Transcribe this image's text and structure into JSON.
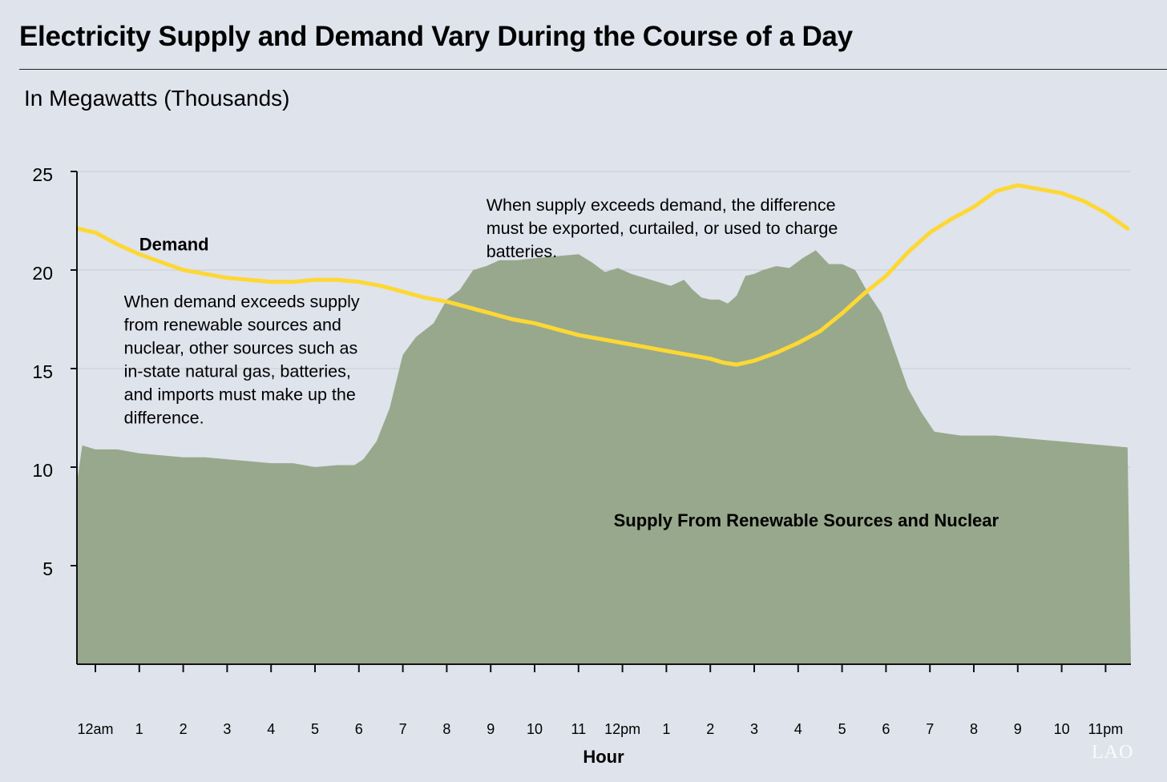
{
  "title": "Electricity Supply and Demand Vary During the Course of a Day",
  "subtitle": "In Megawatts (Thousands)",
  "watermark": "LAO",
  "colors": {
    "background": "#dfe3ec",
    "supply_fill": "#98a88c",
    "demand_line": "#fdd835",
    "axis": "#111111",
    "grid": "#c8ccd6"
  },
  "chart_data": {
    "type": "area",
    "xlabel": "Hour",
    "ylabel": "",
    "ylim": [
      0,
      25
    ],
    "yticks": [
      5,
      10,
      15,
      20,
      25
    ],
    "ytick_labels": [
      "5",
      "10",
      "15",
      "20",
      "25"
    ],
    "xticks": [
      0,
      1,
      2,
      3,
      4,
      5,
      6,
      7,
      8,
      9,
      10,
      11,
      12,
      13,
      14,
      15,
      16,
      17,
      18,
      19,
      20,
      21,
      22,
      23
    ],
    "xtick_labels": [
      "12am",
      "1",
      "2",
      "3",
      "4",
      "5",
      "6",
      "7",
      "8",
      "9",
      "10",
      "11",
      "12pm",
      "1",
      "2",
      "3",
      "4",
      "5",
      "6",
      "7",
      "8",
      "9",
      "10",
      "11pm"
    ],
    "grid": "horizontal",
    "series": [
      {
        "name": "Supply From Renewable Sources and Nuclear",
        "kind": "area",
        "x": [
          -0.4,
          -0.3,
          0,
          0.5,
          1,
          1.5,
          2,
          2.5,
          3,
          3.5,
          4,
          4.5,
          5,
          5.5,
          5.9,
          6.1,
          6.4,
          6.7,
          7,
          7.3,
          7.7,
          8,
          8.3,
          8.6,
          8.9,
          9.2,
          9.6,
          10,
          10.5,
          11,
          11.3,
          11.6,
          11.9,
          12.2,
          12.5,
          12.8,
          13.1,
          13.4,
          13.6,
          13.8,
          14,
          14.2,
          14.4,
          14.6,
          14.8,
          15,
          15.2,
          15.5,
          15.8,
          16.1,
          16.4,
          16.7,
          17,
          17.3,
          17.6,
          17.9,
          18.2,
          18.5,
          18.8,
          19.1,
          19.4,
          19.7,
          20,
          20.5,
          21,
          21.5,
          22,
          22.5,
          23,
          23.5
        ],
        "values": [
          9.5,
          11.1,
          10.9,
          10.9,
          10.7,
          10.6,
          10.5,
          10.5,
          10.4,
          10.3,
          10.2,
          10.2,
          10.0,
          10.1,
          10.1,
          10.4,
          11.3,
          13.0,
          15.7,
          16.6,
          17.3,
          18.5,
          19.0,
          20.0,
          20.2,
          20.5,
          20.5,
          20.6,
          20.7,
          20.8,
          20.4,
          19.9,
          20.1,
          19.8,
          19.6,
          19.4,
          19.2,
          19.5,
          19.0,
          18.6,
          18.5,
          18.5,
          18.3,
          18.7,
          19.7,
          19.8,
          20.0,
          20.2,
          20.1,
          20.6,
          21.0,
          20.3,
          20.3,
          20.0,
          18.8,
          17.8,
          15.9,
          14.0,
          12.8,
          11.8,
          11.7,
          11.6,
          11.6,
          11.6,
          11.5,
          11.4,
          11.3,
          11.2,
          11.1,
          11.0
        ]
      },
      {
        "name": "Demand",
        "kind": "line",
        "x": [
          -0.4,
          0,
          0.5,
          1,
          1.5,
          2,
          2.5,
          3,
          3.5,
          4,
          4.5,
          5,
          5.5,
          6,
          6.5,
          7,
          7.5,
          8,
          8.5,
          9,
          9.5,
          10,
          10.5,
          11,
          11.5,
          12,
          12.5,
          13,
          13.5,
          14,
          14.3,
          14.6,
          15,
          15.5,
          16,
          16.5,
          17,
          17.5,
          18,
          18.5,
          19,
          19.5,
          20,
          20.5,
          21,
          21.5,
          22,
          22.5,
          23,
          23.5
        ],
        "values": [
          22.1,
          21.9,
          21.3,
          20.8,
          20.4,
          20.0,
          19.8,
          19.6,
          19.5,
          19.4,
          19.4,
          19.5,
          19.5,
          19.4,
          19.2,
          18.9,
          18.6,
          18.4,
          18.1,
          17.8,
          17.5,
          17.3,
          17.0,
          16.7,
          16.5,
          16.3,
          16.1,
          15.9,
          15.7,
          15.5,
          15.3,
          15.2,
          15.4,
          15.8,
          16.3,
          16.9,
          17.8,
          18.8,
          19.7,
          20.9,
          21.9,
          22.6,
          23.2,
          24.0,
          24.3,
          24.1,
          23.9,
          23.5,
          22.9,
          22.1
        ]
      }
    ],
    "annotations": [
      {
        "id": "demand-label",
        "text": "Demand",
        "x": 1.0,
        "y": 21.0,
        "bold": true
      },
      {
        "id": "supply-label",
        "text": "Supply From Renewable Sources and Nuclear",
        "x": 11.8,
        "y": 7.0,
        "bold": true
      },
      {
        "id": "deficit-note",
        "lines": [
          "When demand exceeds supply",
          "from renewable sources and",
          "nuclear, other sources such as",
          "in-state natural gas, batteries,",
          "and imports must make up the",
          "difference."
        ],
        "x": 0.65,
        "y": 18.1,
        "bold": false
      },
      {
        "id": "surplus-note",
        "lines": [
          "When supply exceeds demand, the difference",
          "must be exported, curtailed, or used to charge",
          "batteries."
        ],
        "x": 8.9,
        "y": 23.0,
        "bold": false
      }
    ]
  }
}
